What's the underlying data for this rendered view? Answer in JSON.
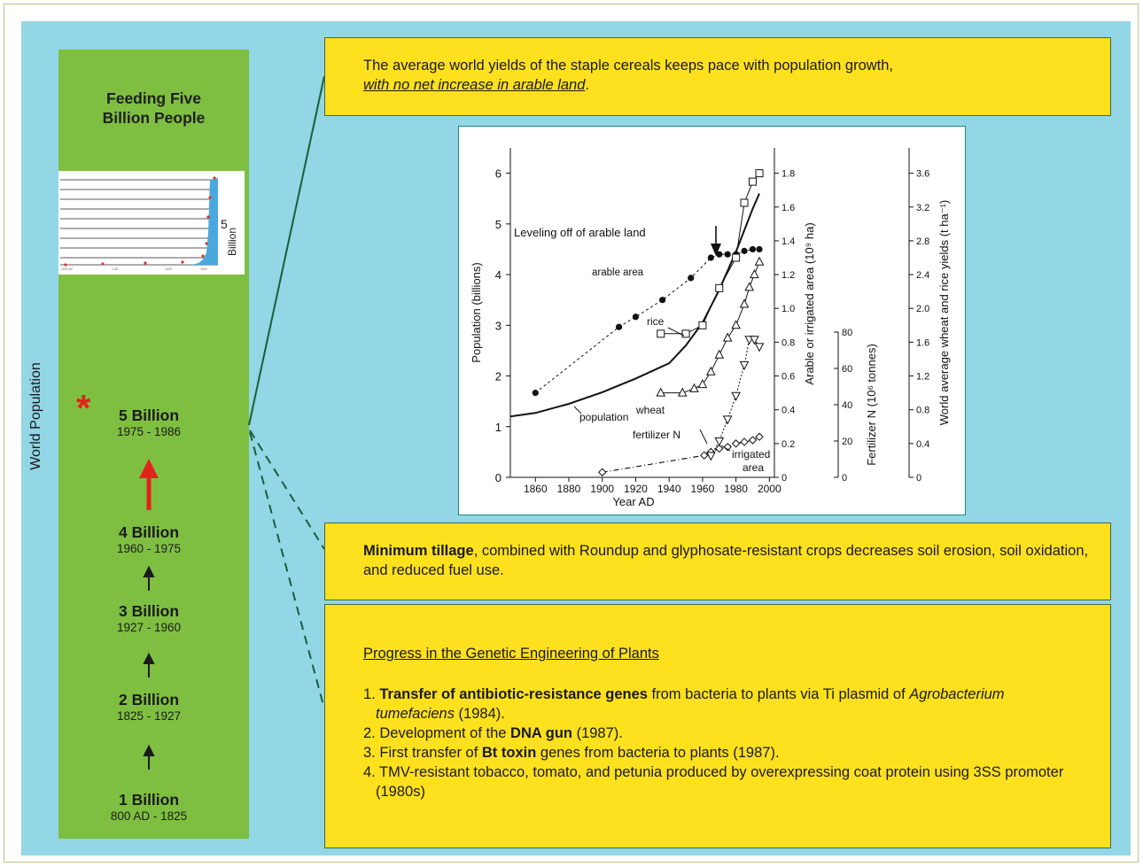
{
  "sidebar": {
    "title": "Feeding Five\nBillion People",
    "axis_label": "World Population",
    "thumbnail_label": "Billion",
    "thumbnail_value": "5",
    "milestones": [
      {
        "label": "5 Billion",
        "years": "1975 - 1986"
      },
      {
        "label": "4 Billion",
        "years": "1960 - 1975"
      },
      {
        "label": "3 Billion",
        "years": "1927 - 1960"
      },
      {
        "label": "2 Billion",
        "years": "1825 - 1927"
      },
      {
        "label": "1 Billion",
        "years": "800 AD - 1825"
      }
    ],
    "asterisk": "*"
  },
  "box1": {
    "text": "The average world yields of the staple cereals keeps pace with population growth,",
    "emphasis": "with no net increase in arable land",
    "end": "."
  },
  "box2": {
    "bold": "Minimum tillage",
    "text": ", combined with Roundup and glyphosate-resistant crops decreases soil erosion, soil oxidation, and reduced fuel use."
  },
  "box3": {
    "heading": "Progress in the Genetic Engineering of Plants",
    "items": [
      {
        "num": "1. ",
        "bold": "Transfer of antibiotic-resistance genes",
        "text": " from bacteria to plants via Ti plasmid of ",
        "italic": "Agrobacterium tumefaciens",
        "tail": " (1984)."
      },
      {
        "num": "2. ",
        "pre": "Development of the ",
        "bold": "DNA gun",
        "tail": " (1987)."
      },
      {
        "num": "3. ",
        "pre": "First transfer of ",
        "bold": "Bt toxin",
        "tail": " genes from bacteria to plants (1987)."
      },
      {
        "num": "4. ",
        "pre": "TMV-resistant tobacco, tomato, and petunia produced by overexpressing coat protein using 3SS promoter (1980s)"
      }
    ]
  },
  "colors": {
    "background_blue": "#93d6e5",
    "sidebar_green": "#7ebf41",
    "callout_yellow": "#fde01e",
    "connector_green": "#17603a",
    "accent_red": "#e2231a"
  },
  "chart_data": {
    "type": "line",
    "xlabel": "Year AD",
    "ylabel": "Population (billions)",
    "xlim": [
      1845,
      2003
    ],
    "x_ticks": [
      1860,
      1880,
      1900,
      1920,
      1940,
      1960,
      1980,
      2000
    ],
    "ylim": [
      0,
      6.5
    ],
    "y_ticks": [
      0,
      1,
      2,
      3,
      4,
      5,
      6
    ],
    "axes": [
      {
        "label": "Arable or irrigated area (10⁹ ha)",
        "range": [
          0,
          1.95
        ],
        "ticks": [
          0,
          0.2,
          0.4,
          0.6,
          0.8,
          1.0,
          1.2,
          1.4,
          1.6,
          1.8
        ]
      },
      {
        "label": "Fertilizer N (10⁶ tonnes)",
        "range": [
          0,
          80
        ],
        "ticks": [
          0,
          20,
          40,
          60,
          80
        ]
      },
      {
        "label": "World average wheat and rice yields (t ha⁻¹)",
        "range": [
          0,
          3.9
        ],
        "ticks": [
          0,
          0.4,
          0.8,
          1.2,
          1.6,
          2.0,
          2.4,
          2.8,
          3.2,
          3.6
        ]
      }
    ],
    "annotations": [
      "Leveling off of arable land",
      "arable area",
      "rice",
      "wheat",
      "population",
      "fertilizer N",
      "irrigated",
      "area"
    ],
    "series": [
      {
        "name": "population",
        "axis": "Population (billions)",
        "x": [
          1845,
          1860,
          1880,
          1900,
          1920,
          1940,
          1950,
          1960,
          1970,
          1980,
          1990,
          1994
        ],
        "y": [
          1.2,
          1.27,
          1.45,
          1.68,
          1.95,
          2.25,
          2.6,
          3.05,
          3.7,
          4.45,
          5.3,
          5.6
        ]
      },
      {
        "name": "arable area",
        "axis": "Arable or irrigated area (10⁹ ha)",
        "x": [
          1860,
          1910,
          1920,
          1936,
          1953,
          1965,
          1970,
          1975,
          1980,
          1985,
          1990,
          1994
        ],
        "y": [
          0.5,
          0.89,
          0.95,
          1.05,
          1.18,
          1.3,
          1.32,
          1.32,
          1.32,
          1.34,
          1.35,
          1.35
        ]
      },
      {
        "name": "irrigated area",
        "axis": "Arable or irrigated area (10⁹ ha)",
        "x": [
          1900,
          1961,
          1965,
          1970,
          1975,
          1980,
          1985,
          1990,
          1994
        ],
        "y": [
          0.03,
          0.13,
          0.15,
          0.17,
          0.18,
          0.2,
          0.21,
          0.22,
          0.24
        ]
      },
      {
        "name": "fertilizer N",
        "axis": "Fertilizer N (10⁶ tonnes)",
        "x": [
          1965,
          1970,
          1975,
          1980,
          1985,
          1988,
          1991,
          1994
        ],
        "y": [
          12,
          20,
          32,
          45,
          62,
          76,
          76,
          72
        ]
      },
      {
        "name": "rice",
        "axis": "World average wheat and rice yields (t ha⁻¹)",
        "x": [
          1935,
          1950,
          1960,
          1970,
          1980,
          1985,
          1990,
          1994
        ],
        "y": [
          1.7,
          1.7,
          1.8,
          2.24,
          2.6,
          3.25,
          3.5,
          3.6
        ]
      },
      {
        "name": "wheat",
        "axis": "World average wheat and rice yields (t ha⁻¹)",
        "x": [
          1935,
          1948,
          1955,
          1960,
          1965,
          1970,
          1975,
          1980,
          1985,
          1988,
          1991,
          1994
        ],
        "y": [
          1.0,
          1.0,
          1.05,
          1.1,
          1.25,
          1.45,
          1.65,
          1.8,
          2.05,
          2.25,
          2.4,
          2.55
        ]
      }
    ],
    "marker": "arrow pointing to leveling of arable area near 1975",
    "grid": false,
    "legend": "none"
  }
}
